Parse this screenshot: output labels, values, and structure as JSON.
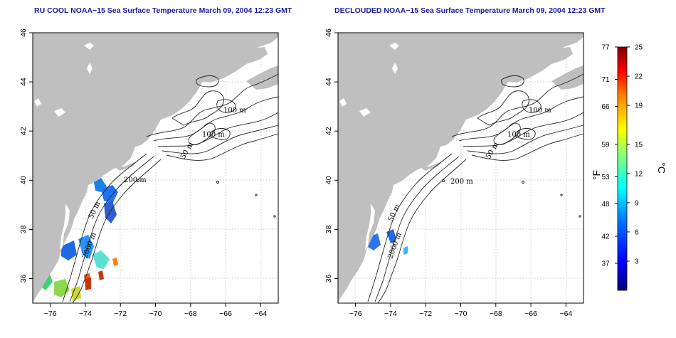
{
  "titles": {
    "left": "RU COOL NOAA−15 Sea Surface Temperature March 09, 2004 12:23 GMT",
    "right": "DECLOUDED NOAA−15 Sea Surface Temperature March 09, 2004 12:23 GMT"
  },
  "map": {
    "lon_range": [
      -77,
      -63
    ],
    "lat_range": [
      35,
      46
    ],
    "x_ticks": [
      -76,
      -74,
      -72,
      -70,
      -68,
      -66,
      -64
    ],
    "y_ticks": [
      36,
      38,
      40,
      42,
      44,
      46
    ],
    "grid": "dotted",
    "land_color": "#bfbfbf",
    "contour_labels": [
      "100 m",
      "100 m",
      "50 m",
      "200 m",
      "50 m",
      "2000 m"
    ]
  },
  "colorbar": {
    "fahrenheit_labels": [
      "77",
      "71",
      "66",
      "59",
      "53",
      "48",
      "42",
      "37"
    ],
    "celsius_labels": [
      "25",
      "22",
      "19",
      "15",
      "12",
      "9",
      "6",
      "3"
    ],
    "unit_f": "°F",
    "unit_c": "°C",
    "range_c": [
      0,
      25
    ],
    "colors": [
      "#00007f",
      "#0000ff",
      "#0080ff",
      "#00ffff",
      "#80ff80",
      "#ffff00",
      "#ff8000",
      "#ff0000",
      "#7f0000"
    ]
  }
}
